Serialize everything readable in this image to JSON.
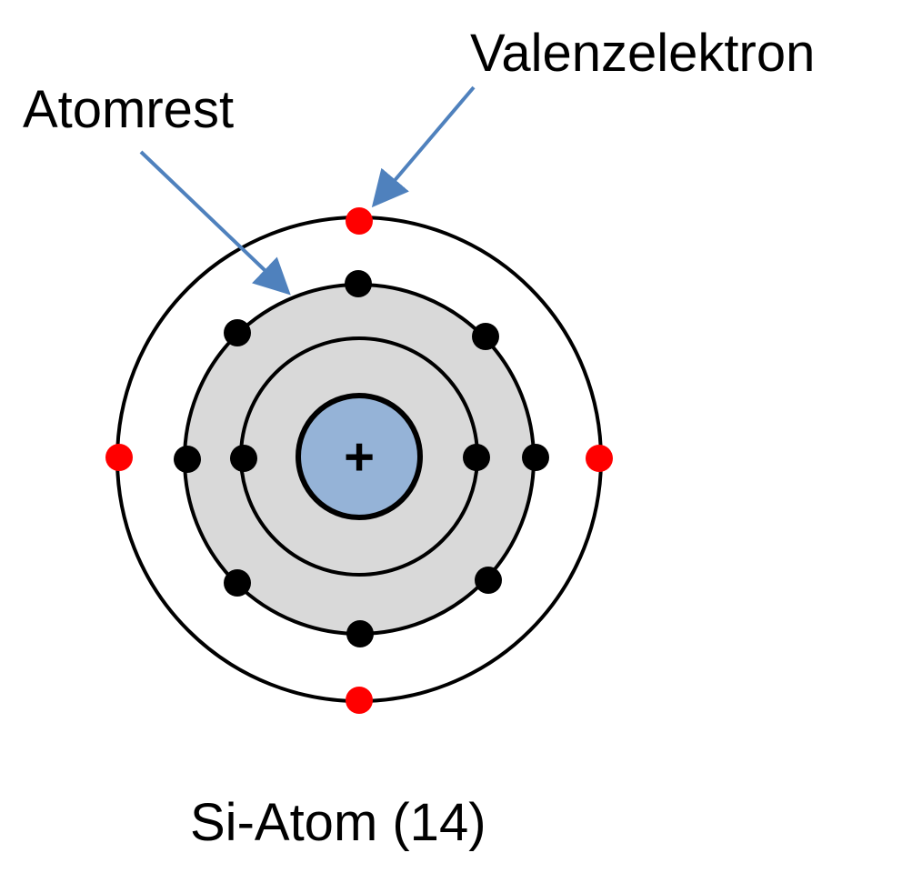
{
  "labels": {
    "valence_electron": "Valenzelektron",
    "atom_core": "Atomrest",
    "caption": "Si-Atom (14)",
    "nucleus_sign": "+"
  },
  "atom": {
    "element": "Si",
    "atomic_number": 14,
    "shells": [
      {
        "name": "inner",
        "electrons": 2
      },
      {
        "name": "middle",
        "electrons": 8
      },
      {
        "name": "valence",
        "electrons": 4
      }
    ]
  },
  "colors": {
    "nucleus_fill": "#95b3d7",
    "core_fill": "#d9d9d9",
    "inner_electron": "#000000",
    "valence_electron": "#ff0000",
    "arrow": "#4f81bd",
    "stroke": "#000000"
  }
}
